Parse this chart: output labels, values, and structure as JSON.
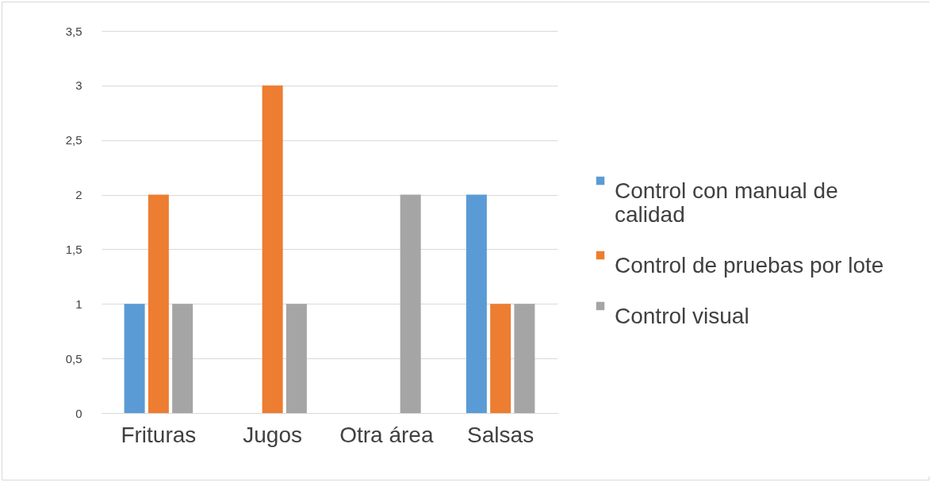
{
  "chart_data": {
    "type": "bar",
    "categories": [
      "Frituras",
      "Jugos",
      "Otra área",
      "Salsas"
    ],
    "series": [
      {
        "name": "Control con manual de calidad",
        "color": "#5b9bd5",
        "values": [
          1,
          0,
          0,
          2
        ]
      },
      {
        "name": "Control de pruebas por lote",
        "color": "#ed7d31",
        "values": [
          2,
          3,
          0,
          1
        ]
      },
      {
        "name": "Control visual",
        "color": "#a5a5a5",
        "values": [
          1,
          1,
          2,
          1
        ]
      }
    ],
    "ylim": [
      0,
      3.5
    ],
    "yticks": [
      0,
      {
        "value": 0.5,
        "label": "0,5"
      },
      1,
      {
        "value": 1.5,
        "label": "1,5"
      },
      2,
      {
        "value": 2.5,
        "label": "2,5"
      },
      3,
      {
        "value": 3.5,
        "label": "3,5"
      }
    ],
    "grid": "y",
    "legend": "right"
  }
}
